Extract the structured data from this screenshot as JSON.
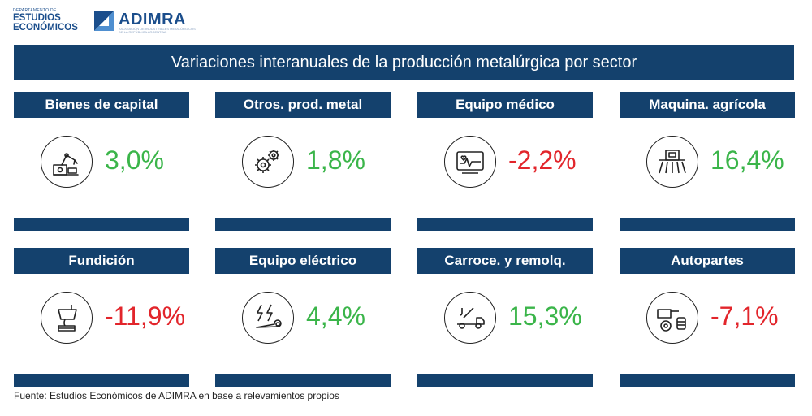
{
  "header": {
    "dept_top": "DEPARTAMENTO DE",
    "dept_line1": "ESTUDIOS",
    "dept_line2": "ECONÓMICOS",
    "brand": "ADIMRA",
    "brand_sub": "ASOCIACIÓN DE INDUSTRIALES METALÚRGICOS DE LA REPÚBLICA ARGENTINA"
  },
  "title": "Variaciones interanuales de la producción metalúrgica por sector",
  "colors": {
    "header_bg": "#14416d",
    "positive": "#3bb54a",
    "negative": "#e2252b"
  },
  "sectors": [
    {
      "name": "Bienes de capital",
      "value": "3,0%",
      "trend": "positive",
      "icon": "robot-arm-icon"
    },
    {
      "name": "Otros. prod. metal",
      "value": "1,8%",
      "trend": "positive",
      "icon": "gears-icon"
    },
    {
      "name": "Equipo médico",
      "value": "-2,2%",
      "trend": "negative",
      "icon": "medical-monitor-icon"
    },
    {
      "name": "Maquina. agrícola",
      "value": "16,4%",
      "trend": "positive",
      "icon": "tractor-sprayer-icon"
    },
    {
      "name": "Fundición",
      "value": "-11,9%",
      "trend": "negative",
      "icon": "foundry-ladle-icon"
    },
    {
      "name": "Equipo eléctrico",
      "value": "4,4%",
      "trend": "positive",
      "icon": "electric-tools-icon"
    },
    {
      "name": "Carroce. y remolq.",
      "value": "15,3%",
      "trend": "positive",
      "icon": "tow-truck-icon"
    },
    {
      "name": "Autopartes",
      "value": "-7,1%",
      "trend": "negative",
      "icon": "auto-parts-icon"
    }
  ],
  "source": "Fuente: Estudios Económicos de ADIMRA en base a relevamientos propios"
}
